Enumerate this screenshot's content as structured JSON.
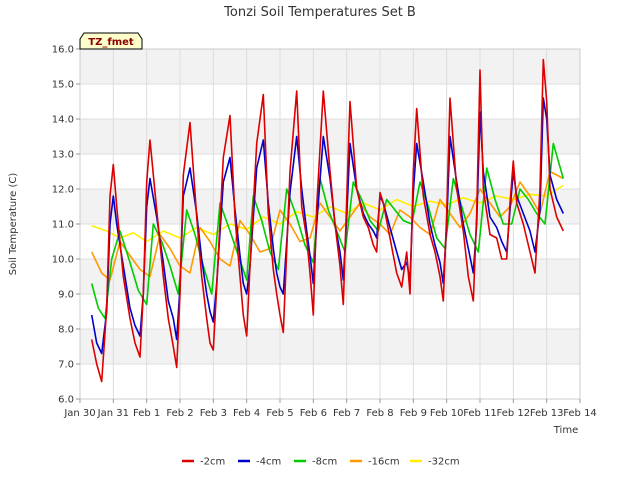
{
  "chart_data": {
    "type": "line",
    "title": "Tonzi Soil Temperatures Set B",
    "xlabel": "Time",
    "ylabel": "Soil Temperature (C)",
    "badge": "TZ_fmet",
    "ylim": [
      6.0,
      16.0
    ],
    "yticks": [
      "6.0",
      "7.0",
      "8.0",
      "9.0",
      "10.0",
      "11.0",
      "12.0",
      "13.0",
      "14.0",
      "15.0",
      "16.0"
    ],
    "xlim": [
      0,
      15
    ],
    "xticks": [
      "Jan 30",
      "Jan 31",
      "Feb 1",
      "Feb 2",
      "Feb 3",
      "Feb 4",
      "Feb 5",
      "Feb 6",
      "Feb 7",
      "Feb 8",
      "Feb 9",
      "Feb 10",
      "Feb 11",
      "Feb 12",
      "Feb 13",
      "Feb 14"
    ],
    "grid": true,
    "legend_position": "bottom",
    "series": [
      {
        "name": "-2cm",
        "color": "#dd0000",
        "x": [
          0.35,
          0.5,
          0.65,
          0.8,
          0.9,
          1.0,
          1.1,
          1.3,
          1.5,
          1.65,
          1.8,
          1.9,
          2.0,
          2.1,
          2.3,
          2.5,
          2.65,
          2.8,
          2.9,
          3.0,
          3.1,
          3.3,
          3.5,
          3.65,
          3.8,
          3.9,
          4.0,
          4.1,
          4.3,
          4.5,
          4.65,
          4.8,
          4.9,
          5.0,
          5.1,
          5.3,
          5.5,
          5.65,
          5.8,
          5.9,
          6.0,
          6.1,
          6.3,
          6.5,
          6.65,
          6.8,
          6.9,
          7.0,
          7.1,
          7.3,
          7.5,
          7.65,
          7.8,
          7.9,
          8.0,
          8.1,
          8.3,
          8.5,
          8.65,
          8.8,
          8.9,
          9.0,
          9.1,
          9.3,
          9.5,
          9.65,
          9.8,
          9.9,
          10.0,
          10.1,
          10.3,
          10.5,
          10.65,
          10.8,
          10.9,
          11.0,
          11.1,
          11.3,
          11.5,
          11.65,
          11.8,
          11.9,
          12.0,
          12.1,
          12.3,
          12.5,
          12.65,
          12.8,
          12.9,
          13.0,
          13.1,
          13.3,
          13.5,
          13.65,
          13.8,
          13.9,
          14.0,
          14.1,
          14.3,
          14.5
        ],
        "values": [
          7.7,
          7.0,
          6.5,
          8.6,
          11.8,
          12.7,
          11.5,
          9.5,
          8.3,
          7.6,
          7.2,
          9.0,
          12.2,
          13.4,
          11.4,
          9.5,
          8.3,
          7.5,
          6.9,
          9.0,
          12.4,
          13.9,
          11.2,
          9.5,
          8.3,
          7.6,
          7.4,
          9.2,
          12.9,
          14.1,
          11.2,
          9.5,
          8.4,
          7.8,
          9.8,
          13.3,
          14.7,
          11.3,
          9.7,
          9.0,
          8.4,
          7.9,
          12.5,
          14.8,
          11.5,
          10.6,
          9.6,
          8.4,
          11.5,
          14.8,
          12.5,
          11.0,
          9.8,
          8.7,
          11.7,
          14.5,
          12.0,
          11.2,
          10.9,
          10.4,
          10.2,
          11.9,
          11.6,
          10.6,
          9.6,
          9.2,
          10.2,
          9.0,
          12.5,
          14.3,
          11.8,
          10.7,
          10.2,
          9.5,
          8.8,
          11.3,
          14.6,
          12.0,
          10.8,
          9.5,
          8.8,
          11.3,
          15.4,
          12.0,
          10.7,
          10.6,
          10.0,
          10.0,
          11.6,
          12.8,
          11.6,
          11.0,
          10.2,
          9.6,
          12.0,
          15.7,
          14.5,
          12.0,
          11.2,
          10.8
        ]
      },
      {
        "name": "-4cm",
        "color": "#0000cc",
        "x": [
          0.35,
          0.5,
          0.65,
          0.8,
          0.9,
          1.0,
          1.1,
          1.3,
          1.5,
          1.65,
          1.8,
          1.9,
          2.0,
          2.1,
          2.3,
          2.5,
          2.65,
          2.8,
          2.9,
          3.0,
          3.1,
          3.3,
          3.5,
          3.65,
          3.8,
          3.9,
          4.0,
          4.1,
          4.3,
          4.5,
          4.65,
          4.8,
          4.9,
          5.0,
          5.1,
          5.3,
          5.5,
          5.65,
          5.8,
          5.9,
          6.0,
          6.1,
          6.3,
          6.5,
          6.65,
          6.8,
          6.9,
          7.0,
          7.1,
          7.3,
          7.5,
          7.65,
          7.8,
          7.9,
          8.0,
          8.1,
          8.3,
          8.5,
          8.65,
          8.8,
          8.9,
          9.0,
          9.1,
          9.3,
          9.5,
          9.65,
          9.8,
          9.9,
          10.0,
          10.1,
          10.3,
          10.5,
          10.65,
          10.8,
          10.9,
          11.0,
          11.1,
          11.3,
          11.5,
          11.65,
          11.8,
          11.9,
          12.0,
          12.1,
          12.3,
          12.5,
          12.65,
          12.8,
          12.9,
          13.0,
          13.1,
          13.3,
          13.5,
          13.65,
          13.8,
          13.9,
          14.0,
          14.1,
          14.3,
          14.5
        ],
        "values": [
          8.4,
          7.6,
          7.3,
          8.5,
          11.0,
          11.8,
          11.0,
          9.8,
          8.6,
          8.1,
          7.8,
          9.0,
          11.5,
          12.3,
          11.2,
          9.9,
          8.8,
          8.3,
          7.7,
          9.2,
          11.8,
          12.6,
          11.3,
          10.0,
          9.0,
          8.5,
          8.2,
          9.3,
          12.2,
          12.9,
          11.4,
          10.1,
          9.3,
          9.0,
          9.8,
          12.6,
          13.4,
          11.6,
          10.3,
          9.6,
          9.2,
          9.0,
          11.9,
          13.5,
          12.0,
          10.8,
          10.1,
          9.3,
          11.0,
          13.5,
          12.3,
          11.0,
          10.2,
          9.4,
          11.2,
          13.3,
          12.0,
          11.3,
          11.0,
          10.8,
          10.6,
          11.8,
          11.6,
          10.9,
          10.2,
          9.7,
          9.9,
          9.4,
          11.9,
          13.3,
          12.2,
          11.0,
          10.4,
          9.9,
          9.3,
          11.0,
          13.5,
          12.2,
          11.0,
          10.3,
          9.6,
          11.0,
          14.2,
          12.5,
          11.2,
          10.9,
          10.5,
          10.2,
          11.4,
          12.5,
          11.8,
          11.3,
          10.8,
          10.2,
          11.4,
          14.6,
          14.0,
          12.4,
          11.7,
          11.3
        ]
      },
      {
        "name": "-8cm",
        "color": "#00cc00",
        "x": [
          0.35,
          0.55,
          0.75,
          0.95,
          1.2,
          1.5,
          1.75,
          2.0,
          2.2,
          2.45,
          2.7,
          2.95,
          3.2,
          3.45,
          3.7,
          3.95,
          4.2,
          4.5,
          4.75,
          5.0,
          5.2,
          5.45,
          5.7,
          5.95,
          6.2,
          6.5,
          6.75,
          7.0,
          7.2,
          7.45,
          7.7,
          7.95,
          8.2,
          8.45,
          8.7,
          8.95,
          9.2,
          9.45,
          9.7,
          9.95,
          10.2,
          10.45,
          10.7,
          10.95,
          11.2,
          11.45,
          11.7,
          11.95,
          12.2,
          12.45,
          12.7,
          12.95,
          13.2,
          13.45,
          13.7,
          13.95,
          14.2,
          14.5
        ],
        "values": [
          9.3,
          8.6,
          8.3,
          10.0,
          10.8,
          9.9,
          9.1,
          8.7,
          11.0,
          10.5,
          9.8,
          9.0,
          11.4,
          10.7,
          9.8,
          9.0,
          11.6,
          10.8,
          10.1,
          9.4,
          11.8,
          11.1,
          10.2,
          9.7,
          12.0,
          11.2,
          10.4,
          9.9,
          12.3,
          11.4,
          10.8,
          10.2,
          12.2,
          11.7,
          11.1,
          10.8,
          11.7,
          11.4,
          11.1,
          11.0,
          12.2,
          11.5,
          10.6,
          10.3,
          12.3,
          11.5,
          10.7,
          10.2,
          12.6,
          11.7,
          11.0,
          11.0,
          12.0,
          11.7,
          11.3,
          11.0,
          13.3,
          12.3
        ]
      },
      {
        "name": "-16cm",
        "color": "#ff9900",
        "x": [
          0.35,
          0.65,
          0.9,
          1.2,
          1.5,
          1.8,
          2.1,
          2.4,
          2.7,
          3.0,
          3.3,
          3.6,
          3.9,
          4.2,
          4.5,
          4.8,
          5.1,
          5.4,
          5.7,
          6.0,
          6.3,
          6.6,
          6.9,
          7.2,
          7.5,
          7.8,
          8.1,
          8.4,
          8.7,
          9.0,
          9.3,
          9.6,
          9.9,
          10.2,
          10.5,
          10.8,
          11.1,
          11.4,
          11.7,
          12.0,
          12.3,
          12.6,
          12.9,
          13.2,
          13.5,
          13.8,
          14.1,
          14.5
        ],
        "values": [
          10.2,
          9.6,
          9.4,
          10.5,
          10.1,
          9.7,
          9.5,
          10.7,
          10.3,
          9.8,
          9.6,
          10.9,
          10.5,
          10.0,
          9.8,
          11.1,
          10.7,
          10.2,
          10.3,
          11.4,
          11.0,
          10.5,
          10.6,
          11.6,
          11.2,
          10.8,
          11.2,
          11.6,
          11.2,
          11.0,
          10.7,
          11.4,
          11.2,
          10.9,
          10.7,
          11.7,
          11.3,
          10.9,
          11.3,
          12.0,
          11.6,
          11.2,
          11.5,
          12.2,
          11.8,
          11.3,
          12.5,
          12.3
        ]
      },
      {
        "name": "-32cm",
        "color": "#ffee00",
        "x": [
          0.35,
          0.8,
          1.2,
          1.6,
          2.0,
          2.5,
          3.0,
          3.5,
          4.0,
          4.5,
          5.0,
          5.5,
          6.0,
          6.5,
          7.0,
          7.5,
          8.0,
          8.5,
          9.0,
          9.5,
          10.0,
          10.5,
          11.0,
          11.5,
          12.0,
          12.5,
          13.0,
          13.5,
          14.0,
          14.5
        ],
        "values": [
          10.95,
          10.8,
          10.6,
          10.75,
          10.5,
          10.8,
          10.6,
          10.9,
          10.7,
          11.0,
          10.85,
          11.2,
          11.0,
          11.35,
          11.2,
          11.5,
          11.3,
          11.6,
          11.4,
          11.7,
          11.5,
          11.65,
          11.55,
          11.75,
          11.6,
          11.8,
          11.7,
          11.85,
          11.8,
          12.1
        ]
      }
    ]
  }
}
